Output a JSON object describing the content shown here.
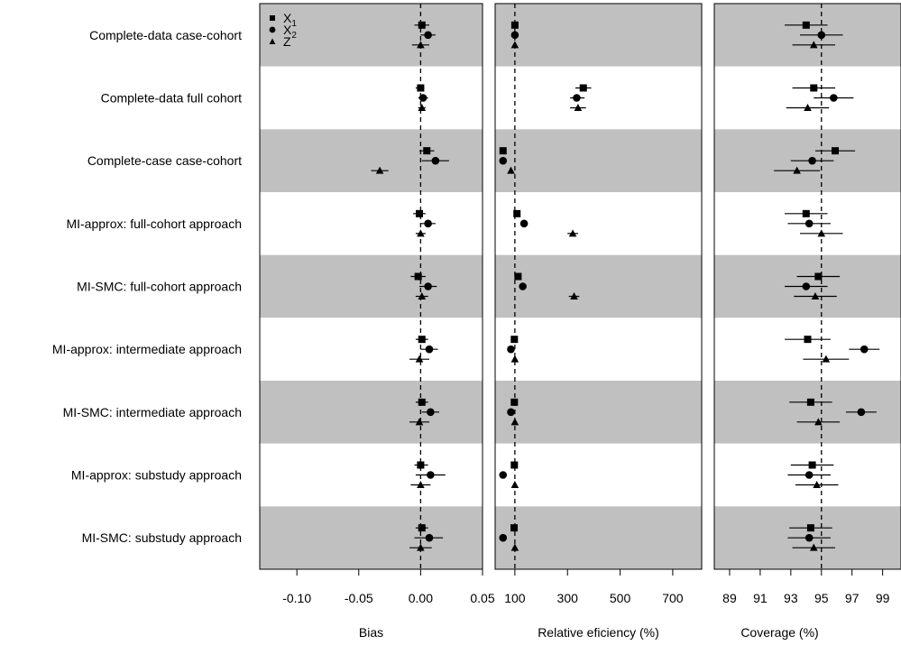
{
  "chart_data": {
    "type": "scatter",
    "rows": [
      "Complete-data case-cohort",
      "Complete-data full cohort",
      "Complete-case case-cohort",
      "MI-approx: full-cohort approach",
      "MI-SMC: full-cohort approach",
      "MI-approx: intermediate approach",
      "MI-SMC: intermediate approach",
      "MI-approx: substudy approach",
      "MI-SMC: substudy approach"
    ],
    "legend": {
      "position": "top-left",
      "items": [
        {
          "variable": "X1",
          "label": "X",
          "sub": "1",
          "marker": "square"
        },
        {
          "variable": "X2",
          "label": "X",
          "sub": "2",
          "marker": "circle"
        },
        {
          "variable": "Z",
          "label": "Z",
          "sub": "",
          "marker": "triangle"
        }
      ]
    },
    "panels": [
      {
        "xlabel": "Bias",
        "xlim": [
          -0.13,
          0.05
        ],
        "ticks": [
          -0.1,
          -0.05,
          0.0,
          0.05
        ],
        "tick_labels": [
          "-0.10",
          "-0.05",
          "0.00",
          "0.05"
        ],
        "reference": 0,
        "series": [
          {
            "name": "X1",
            "values": [
              0.001,
              0.0,
              0.005,
              -0.001,
              -0.002,
              0.001,
              0.001,
              0.0,
              0.001
            ],
            "lower": [
              -0.005,
              -0.004,
              -0.001,
              -0.006,
              -0.008,
              -0.004,
              -0.004,
              -0.005,
              -0.004
            ],
            "upper": [
              0.007,
              0.003,
              0.011,
              0.004,
              0.004,
              0.006,
              0.006,
              0.006,
              0.006
            ]
          },
          {
            "name": "X2",
            "values": [
              0.006,
              0.002,
              0.012,
              0.006,
              0.006,
              0.007,
              0.008,
              0.008,
              0.007
            ],
            "lower": [
              0.0,
              -0.002,
              0.001,
              0.0,
              -0.001,
              0.0,
              0.001,
              -0.004,
              -0.005
            ],
            "upper": [
              0.012,
              0.006,
              0.023,
              0.012,
              0.013,
              0.014,
              0.015,
              0.02,
              0.018
            ],
            "labels": [
              "",
              "",
              "",
              "",
              "",
              "",
              "",
              "",
              ""
            ]
          },
          {
            "name": "Z",
            "values": [
              0.0,
              0.001,
              -0.033,
              0.0,
              0.001,
              -0.001,
              -0.001,
              0.0,
              0.0
            ],
            "lower": [
              -0.007,
              -0.002,
              -0.04,
              -0.004,
              -0.004,
              -0.009,
              -0.009,
              -0.008,
              -0.009
            ],
            "upper": [
              0.007,
              0.004,
              -0.026,
              0.004,
              0.006,
              0.007,
              0.007,
              0.008,
              0.009
            ]
          }
        ]
      },
      {
        "xlabel": "Relative eficiency (%)",
        "xlim": [
          25,
          810
        ],
        "ticks": [
          100,
          300,
          500,
          700
        ],
        "tick_labels": [
          "100",
          "300",
          "500",
          "700"
        ],
        "reference": 100,
        "series": [
          {
            "name": "X1",
            "values": [
              100,
              360,
              55,
              108,
              112,
              98,
              98,
              98,
              97
            ],
            "lower": [
              100,
              330,
              55,
              108,
              112,
              98,
              98,
              98,
              97
            ],
            "upper": [
              100,
              390,
              55,
              108,
              112,
              98,
              98,
              98,
              97
            ]
          },
          {
            "name": "X2",
            "values": [
              100,
              335,
              55,
              135,
              130,
              85,
              85,
              55,
              55
            ],
            "lower": [
              100,
              310,
              55,
              135,
              130,
              85,
              85,
              55,
              55
            ],
            "upper": [
              100,
              365,
              55,
              135,
              130,
              85,
              85,
              55,
              55
            ]
          },
          {
            "name": "Z",
            "values": [
              100,
              340,
              85,
              320,
              325,
              100,
              100,
              100,
              100
            ],
            "lower": [
              100,
              310,
              85,
              300,
              305,
              100,
              100,
              100,
              100
            ],
            "upper": [
              100,
              370,
              85,
              340,
              345,
              100,
              100,
              100,
              100
            ]
          }
        ]
      },
      {
        "xlabel": "Coverage (%)",
        "xlim": [
          88,
          100.2
        ],
        "ticks": [
          89,
          91,
          93,
          95,
          97,
          99
        ],
        "tick_labels": [
          "89",
          "91",
          "93",
          "95",
          "97",
          "99"
        ],
        "reference": 95,
        "series": [
          {
            "name": "X1",
            "values": [
              94.0,
              94.5,
              95.9,
              94.0,
              94.8,
              94.1,
              94.3,
              94.4,
              94.3
            ],
            "lower": [
              92.6,
              93.1,
              94.6,
              92.6,
              93.4,
              92.6,
              92.9,
              93.0,
              92.9
            ],
            "upper": [
              95.4,
              95.9,
              97.2,
              95.4,
              96.2,
              95.6,
              95.7,
              95.8,
              95.7
            ]
          },
          {
            "name": "X2",
            "values": [
              95.0,
              95.8,
              94.4,
              94.2,
              94.0,
              97.8,
              97.6,
              94.2,
              94.2
            ],
            "lower": [
              93.6,
              94.5,
              93.0,
              92.8,
              92.6,
              96.8,
              96.6,
              92.8,
              92.8
            ],
            "upper": [
              96.4,
              97.1,
              95.8,
              95.6,
              95.4,
              98.8,
              98.6,
              95.6,
              95.6
            ]
          },
          {
            "name": "Z",
            "values": [
              94.5,
              94.1,
              93.4,
              95.0,
              94.6,
              95.3,
              94.8,
              94.7,
              94.5
            ],
            "lower": [
              93.1,
              92.7,
              91.9,
              93.6,
              93.2,
              93.8,
              93.4,
              93.3,
              93.1
            ],
            "upper": [
              95.9,
              95.5,
              94.9,
              96.4,
              96.0,
              96.8,
              96.2,
              96.1,
              95.9
            ]
          }
        ]
      }
    ],
    "colors": {
      "band": "#c0c0c0",
      "marks": "#000000",
      "background": "#ffffff"
    }
  }
}
